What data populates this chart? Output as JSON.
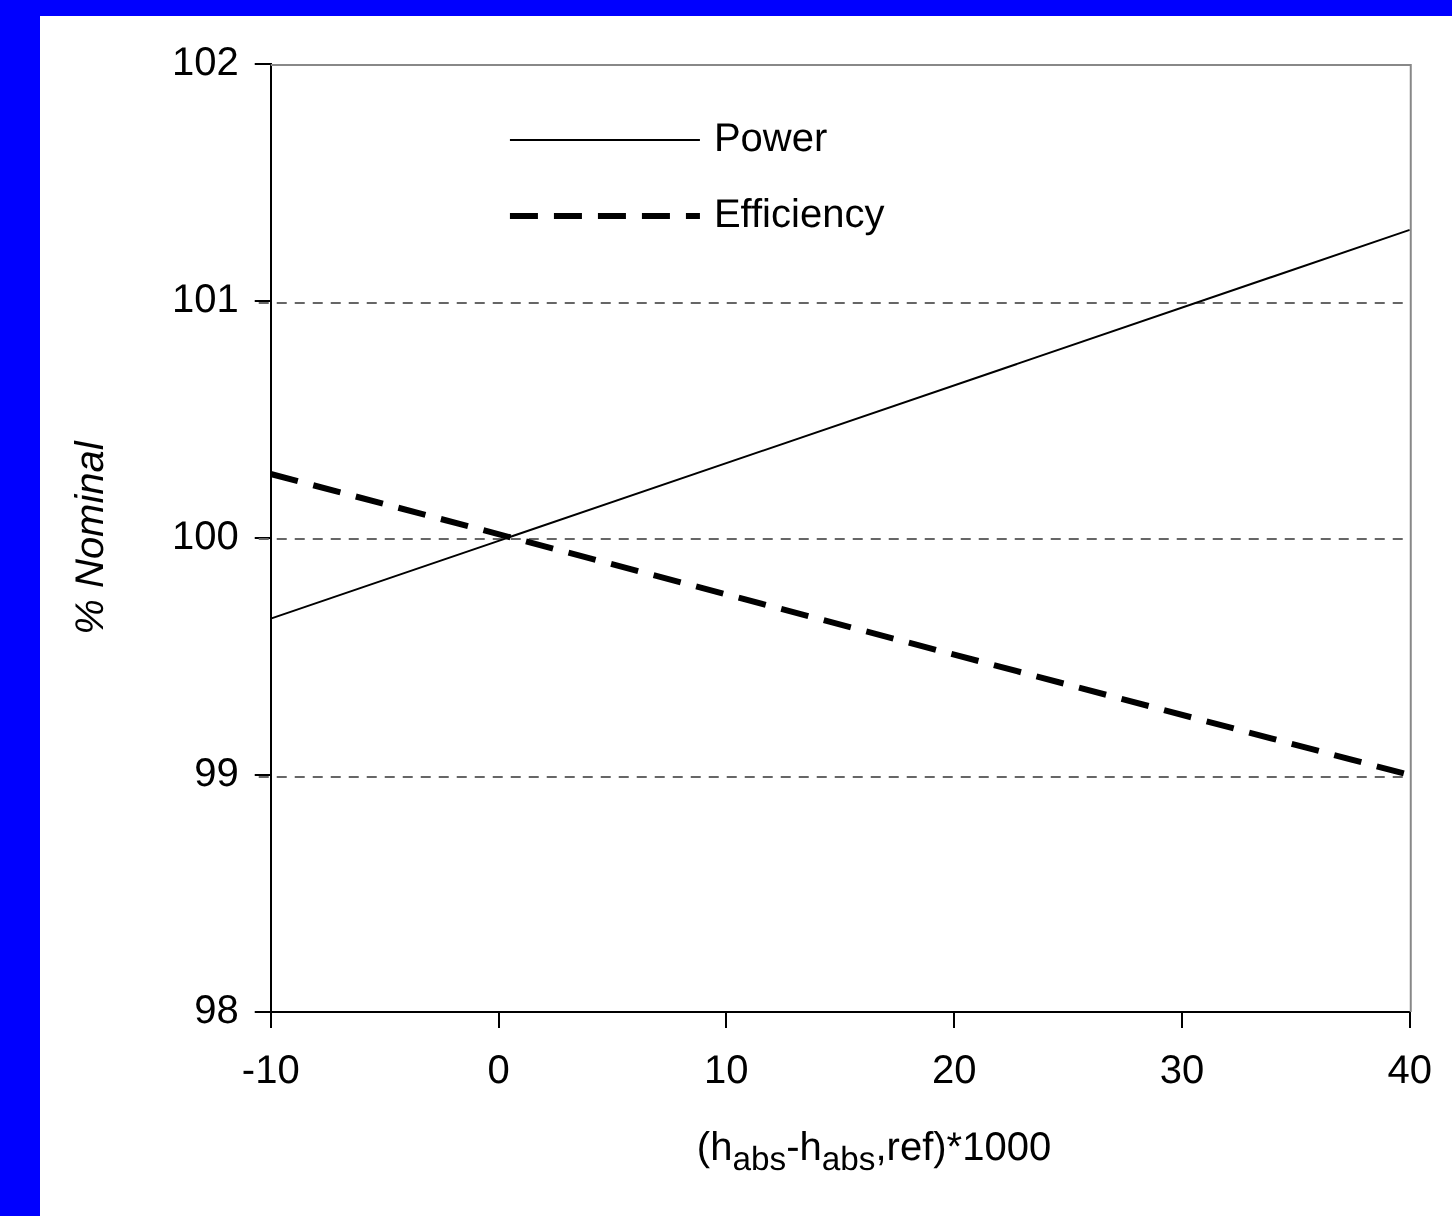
{
  "chart_data": {
    "type": "line",
    "xlabel": "(h$_{abs}$-h$_{abs}$,ref)*1000",
    "ylabel": "% Nominal",
    "x": [
      -10,
      40
    ],
    "series": [
      {
        "name": "Power",
        "color": "#000000",
        "values": [
          99.66,
          101.3
        ],
        "line_style": "solid"
      },
      {
        "name": "Efficiency",
        "color": "#000000",
        "values": [
          100.27,
          99.0
        ],
        "line_style": "dashed"
      }
    ],
    "xlim": [
      -10,
      40
    ],
    "xticks": [
      -10,
      0,
      10,
      20,
      30,
      40
    ],
    "ylim": [
      98,
      102
    ],
    "yticks": [
      98,
      99,
      100,
      101,
      102
    ],
    "grid": "y",
    "legend": "top",
    "marker": "none"
  }
}
